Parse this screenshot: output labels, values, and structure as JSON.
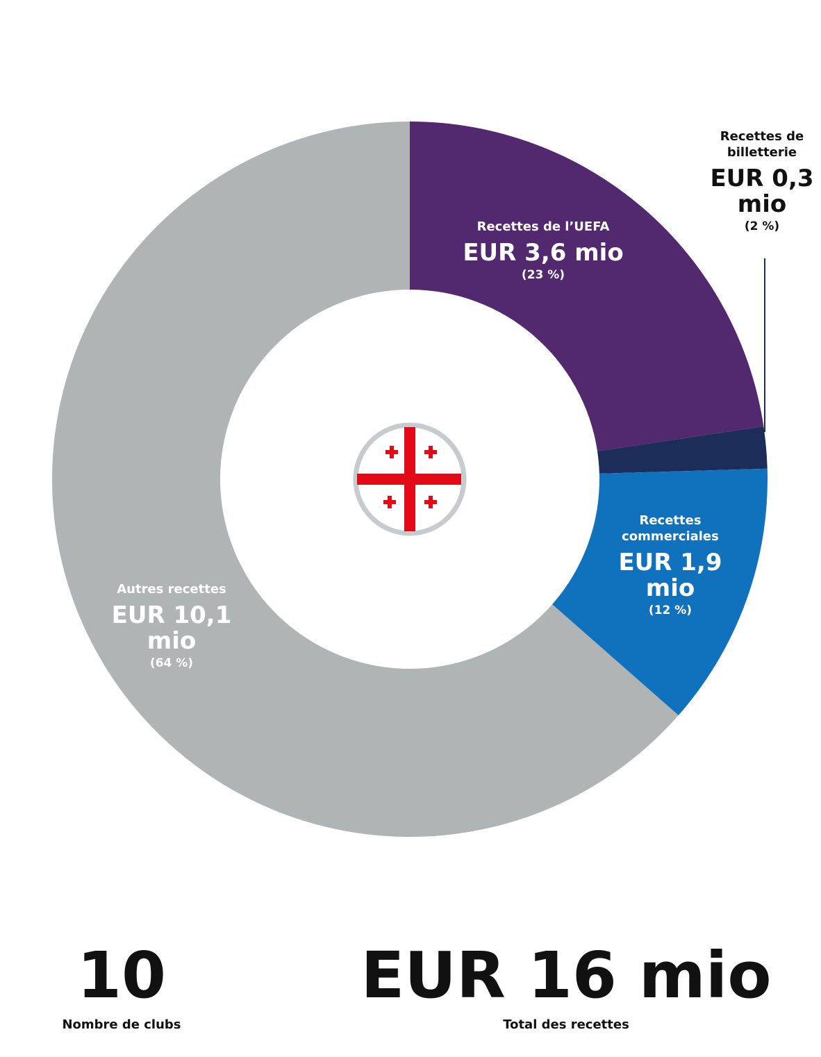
{
  "chart_data": {
    "type": "donut",
    "categories": [
      "Recettes de l’UEFA",
      "Recettes de billetterie",
      "Recettes commerciales",
      "Autres recettes"
    ],
    "values": [
      3.6,
      0.3,
      1.9,
      10.1
    ],
    "value_labels": [
      "EUR 3,6 mio",
      "EUR 0,3 mio",
      "EUR 1,9 mio",
      "EUR 10,1 mio"
    ],
    "shares": [
      23,
      2,
      12,
      64
    ],
    "share_labels": [
      "(23 %)",
      "(2 %)",
      "(12 %)",
      "(64 %)"
    ],
    "colors": [
      "#52286e",
      "#1c2d5a",
      "#1072bc",
      "#b1b4b5"
    ]
  },
  "clubs": {
    "value": 10,
    "label": "Nombre de clubs"
  },
  "total": {
    "text": "EUR 16 mio",
    "label": "Total des recettes"
  }
}
